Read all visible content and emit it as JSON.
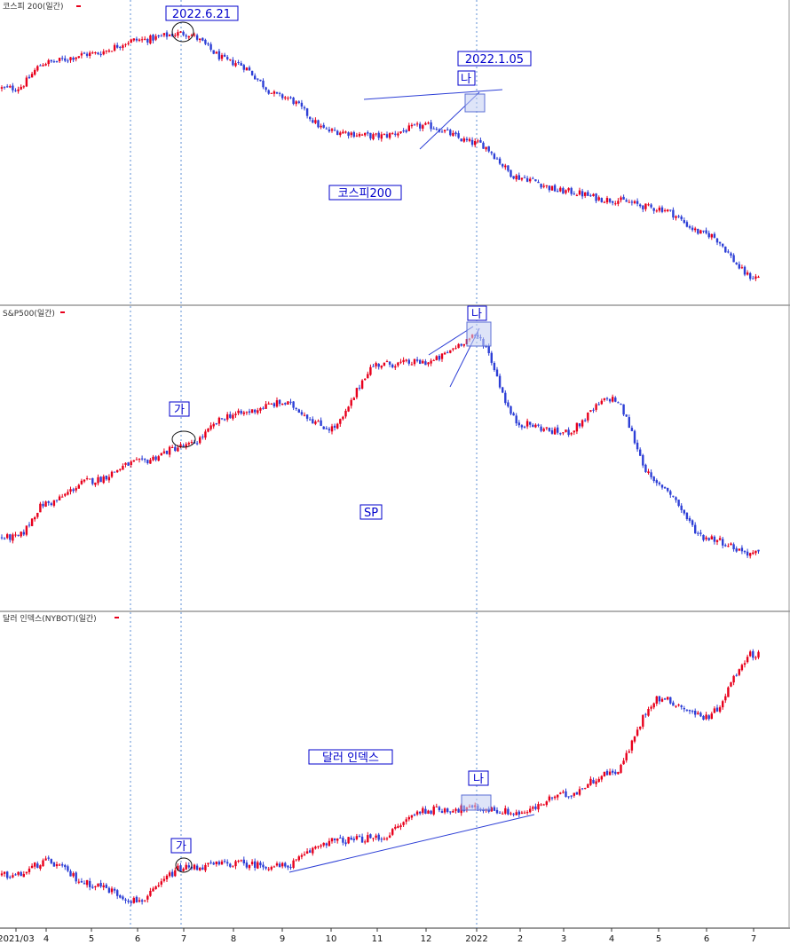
{
  "colors": {
    "up": "#e8001c",
    "down": "#2d3fd6",
    "annotation": "#0000cc",
    "trendline": "#2d3fd6",
    "separator": "#9a9a9a",
    "vline": "#5c8fd6"
  },
  "x_axis": {
    "ticks": [
      "2021/03",
      "4",
      "5",
      "6",
      "7",
      "8",
      "9",
      "10",
      "11",
      "12",
      "2022",
      "2",
      "3",
      "4",
      "5",
      "6",
      "7"
    ]
  },
  "panels": [
    {
      "id": "kospi200",
      "title": "코스피 200(일간)",
      "label": "코스피200",
      "annotations": [
        {
          "text": "2022.6.21",
          "type": "date"
        },
        {
          "text": "2022.1.05",
          "type": "date"
        },
        {
          "text": "나",
          "type": "marker"
        }
      ]
    },
    {
      "id": "sp500",
      "title": "S&P500(일간)",
      "label": "SP",
      "annotations": [
        {
          "text": "가",
          "type": "marker"
        },
        {
          "text": "나",
          "type": "marker"
        }
      ]
    },
    {
      "id": "dxy",
      "title": "달러 인덱스(NYBOT)(일간)",
      "label": "달러 인덱스",
      "annotations": [
        {
          "text": "가",
          "type": "marker"
        },
        {
          "text": "나",
          "type": "marker"
        }
      ]
    }
  ],
  "chart_data": [
    {
      "type": "candlestick",
      "title": "코스피 200(일간)",
      "x": [
        "2021/03",
        "4",
        "5",
        "6",
        "7",
        "8",
        "9",
        "10",
        "11",
        "12",
        "2022",
        "2",
        "3",
        "4",
        "5",
        "6",
        "7"
      ],
      "close": [
        410,
        425,
        430,
        438,
        442,
        425,
        405,
        385,
        382,
        388,
        378,
        358,
        350,
        345,
        340,
        325,
        300
      ],
      "ylim": [
        295,
        450
      ]
    },
    {
      "type": "candlestick",
      "title": "S&P500(일간)",
      "x": [
        "2021/03",
        "4",
        "5",
        "6",
        "7",
        "8",
        "9",
        "10",
        "11",
        "12",
        "2022",
        "2",
        "3",
        "4",
        "5",
        "6",
        "7"
      ],
      "close": [
        3900,
        4050,
        4150,
        4230,
        4300,
        4440,
        4490,
        4380,
        4660,
        4670,
        4780,
        4400,
        4360,
        4510,
        4130,
        3900,
        3830
      ],
      "ylim": [
        3650,
        4850
      ]
    },
    {
      "type": "candlestick",
      "title": "달러 인덱스(NYBOT)(일간)",
      "x": [
        "2021/03",
        "4",
        "5",
        "6",
        "7",
        "8",
        "9",
        "10",
        "11",
        "12",
        "2022",
        "2",
        "3",
        "4",
        "5",
        "6",
        "7"
      ],
      "close": [
        91.6,
        92.5,
        91.0,
        89.9,
        92.1,
        92.4,
        92.2,
        93.9,
        94.1,
        96.0,
        96.1,
        95.8,
        97.0,
        98.5,
        103.5,
        102.3,
        106.5
      ],
      "ylim": [
        89,
        108
      ]
    }
  ]
}
